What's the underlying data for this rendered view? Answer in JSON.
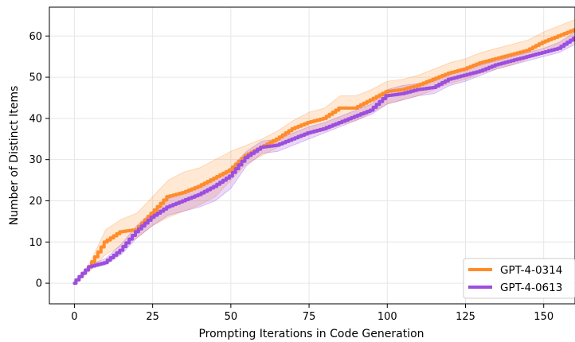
{
  "chart_data": {
    "type": "line",
    "title": "",
    "xlabel": "Prompting Iterations in Code Generation",
    "ylabel": "Number of Distinct Items",
    "xlim": [
      -8,
      160
    ],
    "ylim": [
      -5,
      67
    ],
    "xticks": [
      0,
      25,
      50,
      75,
      100,
      125,
      150
    ],
    "yticks": [
      0,
      10,
      20,
      30,
      40,
      50,
      60
    ],
    "grid": true,
    "legend_position": "bottom-right",
    "series": [
      {
        "name": "GPT-4-0314",
        "color": "#ff8c2a",
        "x": [
          0,
          5,
          10,
          15,
          20,
          25,
          30,
          35,
          40,
          45,
          50,
          55,
          60,
          65,
          70,
          75,
          80,
          85,
          90,
          95,
          100,
          105,
          110,
          115,
          120,
          125,
          130,
          135,
          140,
          145,
          150,
          155,
          160
        ],
        "y": [
          0,
          4,
          10,
          12.5,
          13,
          17,
          21,
          22,
          23.5,
          25.5,
          27.5,
          31,
          33,
          35,
          37.5,
          39,
          40,
          42.5,
          42.5,
          44.5,
          46.5,
          47,
          48,
          49.5,
          51,
          52,
          53.5,
          54.5,
          55.5,
          56.5,
          58.5,
          60,
          61.5
        ],
        "band_lower": [
          0,
          3,
          7,
          9,
          11,
          14,
          16,
          17.5,
          19,
          21,
          25,
          29,
          31,
          33,
          35,
          36,
          37,
          38.5,
          39.5,
          41.5,
          43.5,
          44.5,
          45.5,
          47,
          48.5,
          49.5,
          51,
          52,
          53,
          54.5,
          56,
          57.5,
          59
        ],
        "band_upper": [
          0,
          5,
          13,
          15.5,
          17,
          21,
          25,
          27,
          28,
          30,
          32,
          33.5,
          35,
          37,
          39.5,
          41.5,
          42.5,
          45.5,
          45.5,
          47,
          49,
          49.5,
          50.5,
          52,
          53.5,
          54.5,
          56,
          57,
          58,
          59,
          61,
          62.5,
          64
        ]
      },
      {
        "name": "GPT-4-0613",
        "color": "#9b4ee0",
        "x": [
          0,
          5,
          10,
          15,
          20,
          25,
          30,
          35,
          40,
          45,
          50,
          55,
          60,
          65,
          70,
          75,
          80,
          85,
          90,
          95,
          100,
          105,
          110,
          115,
          120,
          125,
          130,
          135,
          140,
          145,
          150,
          155,
          160
        ],
        "y": [
          0,
          4,
          5,
          8,
          12.5,
          16,
          18.5,
          20,
          21.5,
          23.5,
          26,
          30.5,
          33,
          33.5,
          35,
          36.5,
          37.5,
          39,
          40.5,
          42,
          45.5,
          46,
          47,
          47.5,
          49.5,
          50.5,
          51.5,
          53,
          54,
          55,
          56,
          57,
          59.5
        ],
        "band_lower": [
          0,
          3.5,
          4.5,
          7,
          11,
          14,
          16.5,
          17.5,
          18.5,
          20,
          23,
          28.5,
          31.5,
          32,
          33.5,
          35,
          36.5,
          38,
          39.5,
          41,
          43.5,
          44.5,
          45.5,
          46,
          48,
          49,
          50.5,
          52,
          53,
          54,
          55,
          56,
          58
        ],
        "band_upper": [
          0,
          4.5,
          6,
          9.5,
          14,
          17.5,
          20.5,
          22,
          23.5,
          25.5,
          28,
          32,
          34.5,
          35,
          36.5,
          38,
          39,
          40.5,
          42,
          43.5,
          47,
          48,
          48.5,
          49,
          51,
          52,
          53,
          54,
          55,
          56,
          57,
          58.5,
          61
        ]
      }
    ]
  }
}
